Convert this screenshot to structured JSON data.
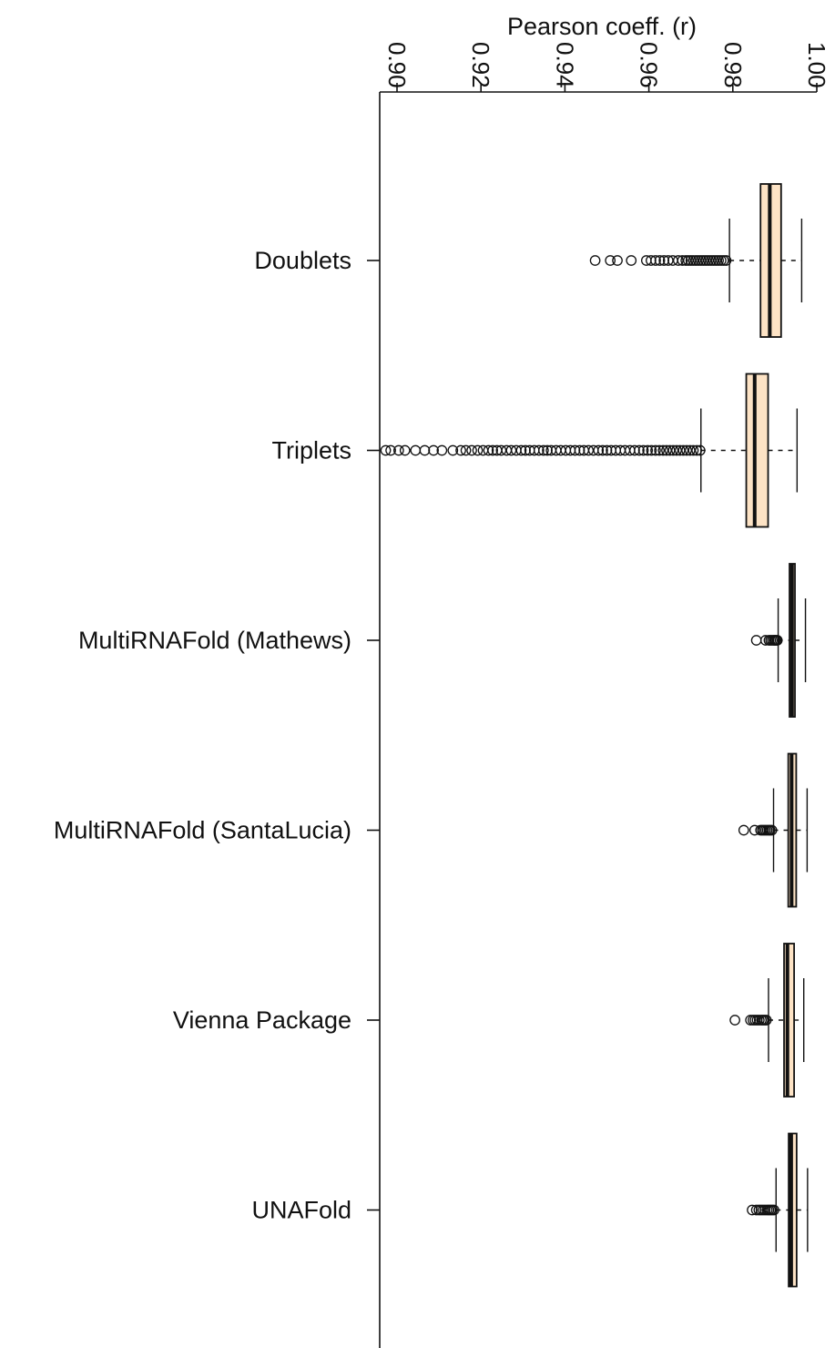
{
  "chart_data": {
    "type": "boxplot",
    "orientation": "horizontal",
    "xlabel": "Pearson coeff. (r)",
    "xaxis_position": "top",
    "tick_labels_rotated": true,
    "xlim": [
      0.896,
      1.0
    ],
    "xticks": [
      "0.90",
      "0.92",
      "0.94",
      "0.96",
      "0.98",
      "1.00"
    ],
    "box_fill_color": "#fde3c5",
    "line_color": "#111111",
    "grid": false,
    "legend": false,
    "categories": [
      "Doublets",
      "Triplets",
      "MultiRNAFold (Mathews)",
      "MultiRNAFold (SantaLucia)",
      "Vienna Package",
      "UNAFold"
    ],
    "series": [
      {
        "category": "Doublets",
        "whisker_low": 0.9792,
        "q1": 0.9866,
        "median": 0.9888,
        "q3": 0.9915,
        "whisker_high": 0.9964,
        "outliers": [
          0.9472,
          0.9508,
          0.9525,
          0.9558,
          0.9594,
          0.9605,
          0.9616,
          0.9626,
          0.9636,
          0.9646,
          0.9657,
          0.967,
          0.968,
          0.9688,
          0.9694,
          0.97,
          0.9706,
          0.9712,
          0.9718,
          0.9724,
          0.973,
          0.9736,
          0.9742,
          0.9748,
          0.9754,
          0.976,
          0.9766,
          0.9772,
          0.9778,
          0.9784
        ]
      },
      {
        "category": "Triplets",
        "whisker_low": 0.9724,
        "q1": 0.9832,
        "median": 0.9852,
        "q3": 0.9884,
        "whisker_high": 0.9953,
        "outliers": [
          0.8973,
          0.8985,
          0.9004,
          0.9019,
          0.9044,
          0.9066,
          0.9087,
          0.9107,
          0.9133,
          0.9152,
          0.9164,
          0.9178,
          0.9192,
          0.9205,
          0.9218,
          0.9228,
          0.9238,
          0.9248,
          0.9261,
          0.9272,
          0.9284,
          0.9296,
          0.9306,
          0.9316,
          0.9327,
          0.9338,
          0.9349,
          0.9358,
          0.9367,
          0.9379,
          0.939,
          0.9402,
          0.9413,
          0.9424,
          0.9435,
          0.9445,
          0.9456,
          0.9468,
          0.948,
          0.949,
          0.95,
          0.951,
          0.9521,
          0.9532,
          0.9543,
          0.9555,
          0.9566,
          0.9577,
          0.9587,
          0.9597,
          0.9606,
          0.9616,
          0.9625,
          0.9634,
          0.9642,
          0.965,
          0.9658,
          0.9666,
          0.9674,
          0.9682,
          0.969,
          0.9698,
          0.9706,
          0.9714,
          0.9722
        ]
      },
      {
        "category": "MultiRNAFold (Mathews)",
        "whisker_low": 0.9908,
        "q1": 0.9935,
        "median": 0.9941,
        "q3": 0.9948,
        "whisker_high": 0.9973,
        "outliers": [
          0.9856,
          0.9878,
          0.9886,
          0.989,
          0.9894,
          0.9898,
          0.99,
          0.9903,
          0.9906
        ]
      },
      {
        "category": "MultiRNAFold (SantaLucia)",
        "whisker_low": 0.9897,
        "q1": 0.9932,
        "median": 0.994,
        "q3": 0.9951,
        "whisker_high": 0.9977,
        "outliers": [
          0.9826,
          0.9852,
          0.9866,
          0.987,
          0.9874,
          0.9878,
          0.9882,
          0.9886,
          0.9889,
          0.9893
        ]
      },
      {
        "category": "Vienna Package",
        "whisker_low": 0.9885,
        "q1": 0.9922,
        "median": 0.993,
        "q3": 0.9946,
        "whisker_high": 0.9969,
        "outliers": [
          0.9805,
          0.9842,
          0.9848,
          0.9853,
          0.9858,
          0.9863,
          0.9868,
          0.9872,
          0.9876,
          0.988
        ]
      },
      {
        "category": "UNAFold",
        "whisker_low": 0.9903,
        "q1": 0.9933,
        "median": 0.9939,
        "q3": 0.9952,
        "whisker_high": 0.9978,
        "outliers": [
          0.9846,
          0.9856,
          0.9862,
          0.9867,
          0.9872,
          0.9877,
          0.9882,
          0.9886,
          0.989,
          0.9894,
          0.9898
        ]
      }
    ]
  }
}
